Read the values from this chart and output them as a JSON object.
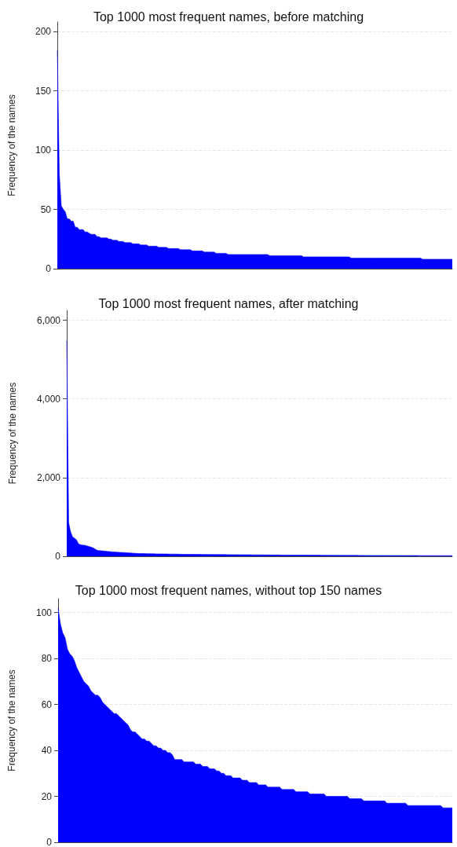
{
  "chart_data": [
    {
      "type": "area",
      "title": "Top 1000 most frequent names, before matching",
      "ylabel": "Frequency of the names",
      "ylim": [
        0,
        208
      ],
      "yticks": [
        0,
        50,
        100,
        150,
        200
      ],
      "grid": "y",
      "tick_labels": "y",
      "categories": [
        null,
        null,
        null,
        null,
        null,
        null,
        null,
        null,
        null,
        null,
        null,
        null,
        null,
        null,
        null,
        null,
        null,
        null,
        null,
        null,
        null,
        null,
        null,
        null,
        null,
        null,
        null,
        null,
        null,
        null,
        null,
        null,
        null,
        null,
        null,
        null,
        null,
        null,
        null,
        null,
        null,
        null,
        null,
        null,
        null,
        null,
        null,
        null,
        null,
        null,
        null,
        null,
        null,
        null,
        null,
        null,
        null,
        null,
        null,
        null,
        null,
        null,
        null,
        null,
        null,
        null,
        null,
        null,
        null,
        null,
        null,
        null,
        null,
        null,
        null,
        null,
        null,
        null,
        null,
        null,
        null,
        null,
        null,
        null,
        null,
        null,
        null,
        null,
        null,
        null,
        null,
        null,
        null,
        null,
        null,
        null,
        null,
        null,
        null,
        null,
        null,
        null,
        null,
        null,
        null,
        null,
        null,
        null,
        null,
        null,
        null,
        null,
        null,
        null,
        null,
        null,
        null,
        null,
        null,
        null,
        null,
        null,
        null,
        null,
        null,
        null,
        null,
        null,
        null,
        null,
        null,
        null,
        null,
        null,
        null,
        null,
        null,
        null,
        null,
        null,
        null,
        null,
        null,
        null,
        null,
        null,
        null,
        null,
        null,
        null,
        null,
        null,
        null,
        null,
        null,
        null,
        null,
        null,
        null,
        null,
        null,
        null,
        null,
        null,
        null,
        null,
        null,
        null,
        null,
        null,
        null,
        null,
        null,
        null,
        null,
        null,
        null,
        null,
        null,
        null,
        null,
        null,
        null,
        null,
        null,
        null,
        null,
        null,
        null,
        null,
        null,
        null,
        null,
        null,
        null,
        null,
        null,
        null,
        null,
        null
      ],
      "series": [
        {
          "color": "#0000ff",
          "values": [
            184,
            80,
            53,
            50,
            48,
            42,
            42,
            40,
            40,
            35,
            35,
            33,
            33,
            33,
            31,
            31,
            30,
            29,
            29,
            29,
            27,
            27,
            26,
            26,
            26,
            26,
            25,
            25,
            24,
            24,
            24,
            23,
            23,
            23,
            22,
            22,
            22,
            22,
            21,
            21,
            21,
            21,
            20,
            20,
            20,
            20,
            19,
            19,
            19,
            19,
            19,
            18,
            18,
            18,
            18,
            18,
            17,
            17,
            17,
            17,
            17,
            17,
            16,
            16,
            16,
            16,
            16,
            16,
            15,
            15,
            15,
            15,
            15,
            15,
            14,
            14,
            14,
            14,
            14,
            14,
            13,
            13,
            13,
            13,
            13,
            13,
            12,
            12,
            12,
            12,
            12,
            12,
            12,
            12,
            12,
            12,
            12,
            12,
            12,
            12,
            12,
            12,
            12,
            12,
            12,
            12,
            12,
            11,
            11,
            11,
            11,
            11,
            11,
            11,
            11,
            11,
            11,
            11,
            11,
            11,
            11,
            11,
            11,
            11,
            10,
            10,
            10,
            10,
            10,
            10,
            10,
            10,
            10,
            10,
            10,
            10,
            10,
            10,
            10,
            10,
            10,
            10,
            10,
            10,
            10,
            10,
            10,
            10,
            9,
            9,
            9,
            9,
            9,
            9,
            9,
            9,
            9,
            9,
            9,
            9,
            9,
            9,
            9,
            9,
            9,
            9,
            9,
            9,
            9,
            9,
            9,
            9,
            9,
            9,
            9,
            9,
            9,
            9,
            9,
            9,
            9,
            9,
            9,
            9,
            8,
            8,
            8,
            8,
            8,
            8,
            8,
            8,
            8,
            8,
            8,
            8,
            8,
            8,
            8,
            8
          ]
        }
      ]
    },
    {
      "type": "area",
      "title": "Top 1000 most frequent names, after matching",
      "ylabel": "Frequency of the names",
      "ylim": [
        0,
        6250
      ],
      "yticks": [
        0,
        {
          "value": 2000,
          "label": "2,000"
        },
        {
          "value": 4000,
          "label": "4,000"
        },
        {
          "value": 6000,
          "label": "6,000"
        }
      ],
      "grid": "y",
      "tick_labels": "y",
      "categories": [
        null,
        null,
        null,
        null,
        null,
        null,
        null,
        null,
        null,
        null,
        null,
        null,
        null,
        null,
        null,
        null,
        null,
        null,
        null,
        null,
        null,
        null,
        null,
        null,
        null,
        null,
        null,
        null,
        null,
        null,
        null,
        null,
        null,
        null,
        null,
        null,
        null,
        null,
        null,
        null,
        null,
        null,
        null,
        null,
        null,
        null,
        null,
        null,
        null,
        null,
        null,
        null,
        null,
        null,
        null,
        null,
        null,
        null,
        null,
        null,
        null,
        null,
        null,
        null,
        null,
        null,
        null,
        null,
        null,
        null,
        null,
        null,
        null,
        null,
        null,
        null,
        null,
        null,
        null,
        null,
        null,
        null,
        null,
        null,
        null,
        null,
        null,
        null,
        null,
        null,
        null,
        null,
        null,
        null,
        null,
        null,
        null,
        null,
        null,
        null,
        null,
        null,
        null,
        null,
        null,
        null,
        null,
        null,
        null,
        null,
        null,
        null,
        null,
        null,
        null,
        null,
        null,
        null,
        null,
        null,
        null,
        null,
        null,
        null,
        null,
        null,
        null,
        null,
        null,
        null,
        null,
        null,
        null,
        null,
        null,
        null,
        null,
        null,
        null,
        null,
        null,
        null,
        null,
        null,
        null,
        null,
        null,
        null,
        null,
        null,
        null,
        null,
        null,
        null,
        null,
        null,
        null,
        null,
        null,
        null,
        null,
        null,
        null,
        null,
        null,
        null,
        null,
        null,
        null,
        null,
        null,
        null,
        null,
        null,
        null,
        null,
        null,
        null,
        null,
        null,
        null,
        null,
        null,
        null,
        null,
        null,
        null,
        null,
        null,
        null,
        null,
        null,
        null,
        null,
        null,
        null,
        null,
        null,
        null,
        null
      ],
      "series": [
        {
          "color": "#0000ff",
          "values": [
            5480,
            850,
            620,
            495,
            460,
            420,
            320,
            295,
            285,
            280,
            272,
            255,
            242,
            225,
            205,
            170,
            148,
            144,
            139,
            134,
            129,
            124,
            119,
            114,
            110,
            108,
            105,
            102,
            99,
            96,
            93,
            89,
            86,
            83,
            80,
            77,
            74,
            71,
            70,
            69,
            68,
            67,
            66,
            65,
            64,
            63,
            62,
            61,
            60,
            60,
            59,
            59,
            58,
            57,
            57,
            56,
            55,
            54,
            53,
            52,
            51,
            50,
            50,
            50,
            49,
            49,
            49,
            48,
            48,
            48,
            47,
            47,
            47,
            46,
            46,
            46,
            45,
            45,
            45,
            44,
            44,
            43,
            43,
            42,
            42,
            41,
            41,
            40,
            40,
            40,
            39,
            39,
            39,
            38,
            38,
            38,
            37,
            37,
            37,
            36,
            36,
            36,
            35,
            35,
            35,
            34,
            34,
            34,
            33,
            33,
            33,
            32,
            32,
            32,
            31,
            31,
            31,
            30,
            30,
            30,
            30,
            30,
            30,
            29,
            29,
            29,
            29,
            28,
            28,
            28,
            28,
            27,
            27,
            27,
            27,
            26,
            26,
            26,
            26,
            25,
            25,
            25,
            25,
            24,
            24,
            24,
            24,
            23,
            23,
            23,
            23,
            22,
            22,
            22,
            22,
            21,
            21,
            21,
            21,
            20,
            20,
            20,
            20,
            20,
            20,
            20,
            19,
            19,
            19,
            19,
            19,
            19,
            19,
            19,
            18,
            18,
            18,
            18,
            18,
            18,
            18,
            18,
            17,
            17,
            17,
            17,
            17,
            17,
            17,
            17,
            16,
            16,
            16,
            16,
            16,
            16,
            16,
            16,
            15,
            15
          ]
        }
      ]
    },
    {
      "type": "area",
      "title": "Top 1000 most frequent names, without top 150 names",
      "ylabel": "Frequency of the names",
      "ylim": [
        0,
        106
      ],
      "yticks": [
        0,
        20,
        40,
        60,
        80,
        100
      ],
      "grid": "y",
      "tick_labels": "y",
      "categories": [
        null,
        null,
        null,
        null,
        null,
        null,
        null,
        null,
        null,
        null,
        null,
        null,
        null,
        null,
        null,
        null,
        null,
        null,
        null,
        null,
        null,
        null,
        null,
        null,
        null,
        null,
        null,
        null,
        null,
        null,
        null,
        null,
        null,
        null,
        null,
        null,
        null,
        null,
        null,
        null,
        null,
        null,
        null,
        null,
        null,
        null,
        null,
        null,
        null,
        null,
        null,
        null,
        null,
        null,
        null,
        null,
        null,
        null,
        null,
        null,
        null,
        null,
        null,
        null,
        null,
        null,
        null,
        null,
        null,
        null,
        null,
        null,
        null,
        null,
        null,
        null,
        null,
        null,
        null,
        null,
        null,
        null,
        null,
        null,
        null,
        null,
        null,
        null,
        null,
        null,
        null,
        null,
        null,
        null,
        null,
        null,
        null,
        null,
        null,
        null,
        null,
        null,
        null,
        null,
        null,
        null,
        null,
        null,
        null,
        null,
        null,
        null,
        null,
        null,
        null,
        null,
        null,
        null,
        null,
        null,
        null,
        null,
        null,
        null,
        null,
        null,
        null,
        null,
        null,
        null,
        null,
        null,
        null,
        null,
        null,
        null,
        null,
        null,
        null,
        null,
        null,
        null,
        null,
        null,
        null,
        null,
        null,
        null,
        null,
        null,
        null,
        null,
        null,
        null,
        null,
        null,
        null,
        null,
        null,
        null,
        null,
        null,
        null,
        null,
        null,
        null,
        null,
        null,
        null,
        null
      ],
      "series": [
        {
          "color": "#0000ff",
          "values": [
            102,
            95,
            91,
            89,
            84,
            82,
            81,
            79,
            76,
            74,
            72,
            70,
            69,
            68,
            66,
            65,
            64,
            64,
            63,
            61,
            60,
            59,
            58,
            57,
            56,
            56,
            55,
            54,
            53,
            52,
            51,
            49,
            48,
            48,
            47,
            46,
            45,
            45,
            44,
            44,
            43,
            42,
            42,
            41,
            41,
            40,
            40,
            39,
            39,
            38,
            36,
            36,
            36,
            36,
            35,
            35,
            35,
            35,
            35,
            34,
            34,
            34,
            33,
            33,
            33,
            32,
            32,
            32,
            31,
            31,
            30,
            30,
            29,
            29,
            29,
            28,
            28,
            28,
            28,
            27,
            27,
            27,
            26,
            26,
            26,
            26,
            25,
            25,
            25,
            25,
            24,
            24,
            24,
            24,
            24,
            24,
            23,
            23,
            23,
            23,
            23,
            23,
            22,
            22,
            22,
            22,
            22,
            22,
            21,
            21,
            21,
            21,
            21,
            21,
            21,
            20,
            20,
            20,
            20,
            20,
            20,
            20,
            20,
            20,
            20,
            19,
            19,
            19,
            19,
            19,
            19,
            18,
            18,
            18,
            18,
            18,
            18,
            18,
            18,
            18,
            18,
            17,
            17,
            17,
            17,
            17,
            17,
            17,
            17,
            17,
            16,
            16,
            16,
            16,
            16,
            16,
            16,
            16,
            16,
            16,
            16,
            16,
            16,
            16,
            16,
            15,
            15,
            15,
            15,
            15
          ]
        }
      ]
    }
  ]
}
